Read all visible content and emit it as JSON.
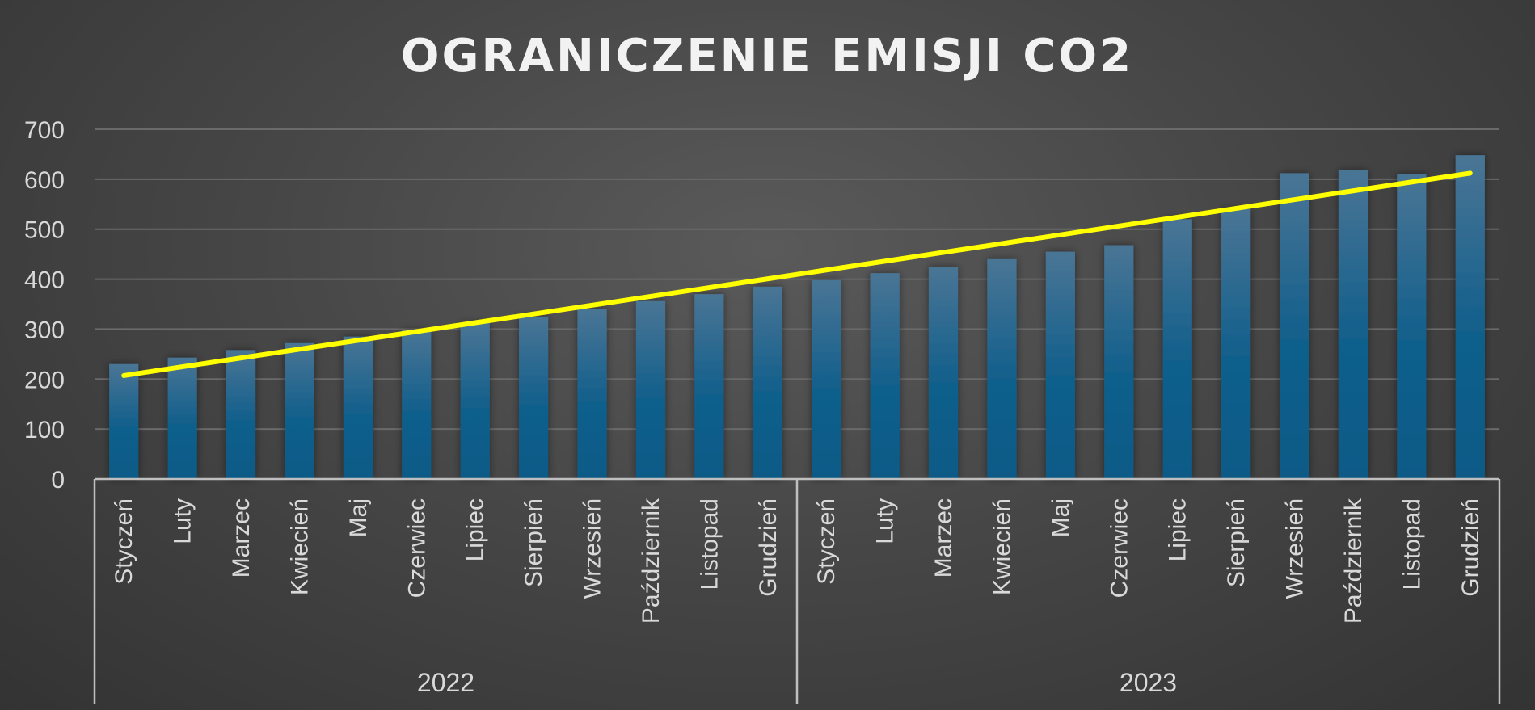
{
  "chart_data": {
    "type": "bar",
    "title": "OGRANICZENIE EMISJI CO2",
    "xlabel": "",
    "ylabel": "",
    "ylim": [
      0,
      700
    ],
    "yticks": [
      0,
      100,
      200,
      300,
      400,
      500,
      600,
      700
    ],
    "grid": true,
    "legend": "none",
    "groups": [
      {
        "label": "2022",
        "count": 12
      },
      {
        "label": "2023",
        "count": 12
      }
    ],
    "categories": [
      "Styczeń",
      "Luty",
      "Marzec",
      "Kwiecień",
      "Maj",
      "Czerwiec",
      "Lipiec",
      "Sierpień",
      "Wrzesień",
      "Październik",
      "Listopad",
      "Grudzień",
      "Styczeń",
      "Luty",
      "Marzec",
      "Kwiecień",
      "Maj",
      "Czerwiec",
      "Lipiec",
      "Sierpień",
      "Wrzesień",
      "Październik",
      "Listopad",
      "Grudzień"
    ],
    "series": [
      {
        "values": [
          230,
          243,
          258,
          272,
          285,
          298,
          312,
          325,
          340,
          356,
          370,
          385,
          398,
          412,
          425,
          440,
          455,
          468,
          520,
          540,
          612,
          618,
          610,
          648
        ],
        "color": "#1f5f8b"
      }
    ],
    "trendline": {
      "type": "linear",
      "start": 207,
      "end": 612,
      "color": "#ffff00"
    }
  }
}
